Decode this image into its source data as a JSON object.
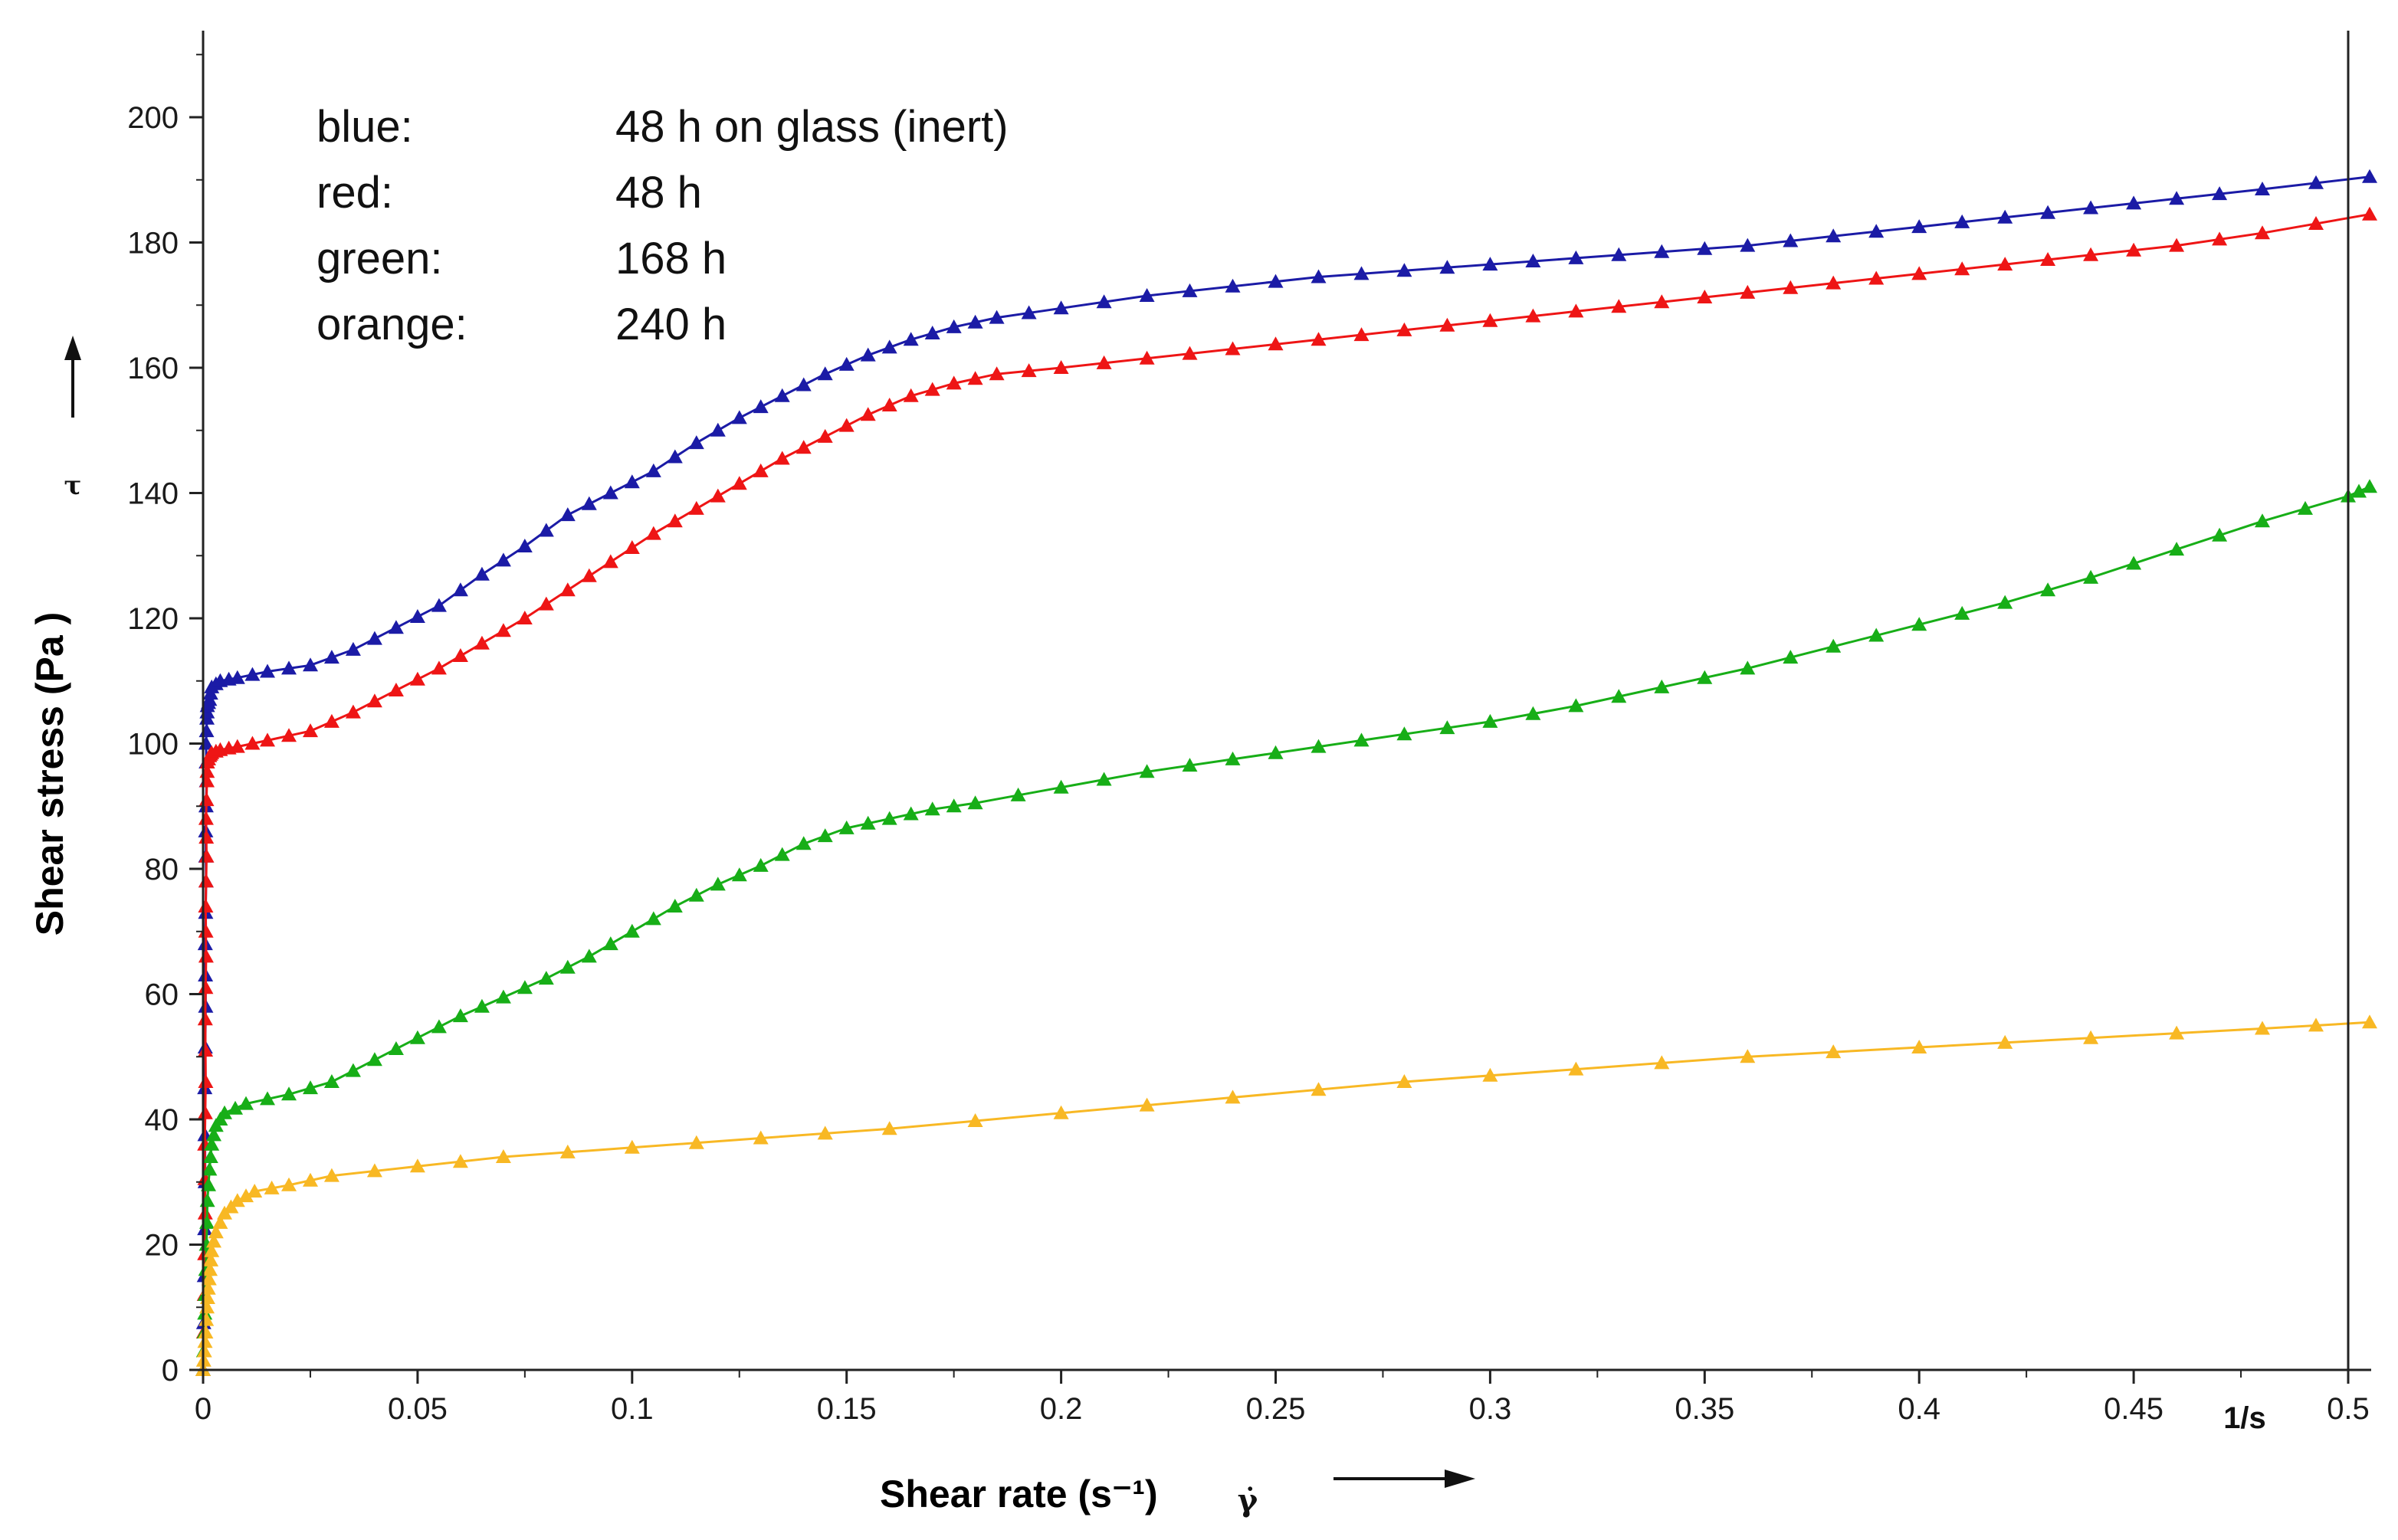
{
  "chart_data": {
    "type": "line",
    "title": "",
    "xlabel": "Shear rate (s⁻¹)",
    "x_symbol": "γ̇",
    "ylabel": "Shear stress (Pa )",
    "y_symbol": "τ",
    "x_unit": "1/s",
    "xlim": [
      0,
      0.505
    ],
    "ylim": [
      0,
      215
    ],
    "x_ticks": [
      {
        "value": 0,
        "label": "0"
      },
      {
        "value": 0.05,
        "label": "0.05"
      },
      {
        "value": 0.1,
        "label": "0.1"
      },
      {
        "value": 0.15,
        "label": "0.15"
      },
      {
        "value": 0.2,
        "label": "0.2"
      },
      {
        "value": 0.25,
        "label": "0.25"
      },
      {
        "value": 0.3,
        "label": "0.3"
      },
      {
        "value": 0.35,
        "label": "0.35"
      },
      {
        "value": 0.4,
        "label": "0.4"
      },
      {
        "value": 0.45,
        "label": "0.45"
      },
      {
        "value": 0.5,
        "label": "0.5"
      }
    ],
    "y_ticks": [
      {
        "value": 0,
        "label": "0"
      },
      {
        "value": 20,
        "label": "20"
      },
      {
        "value": 40,
        "label": "40"
      },
      {
        "value": 60,
        "label": "60"
      },
      {
        "value": 80,
        "label": "80"
      },
      {
        "value": 100,
        "label": "100"
      },
      {
        "value": 120,
        "label": "120"
      },
      {
        "value": 140,
        "label": "140"
      },
      {
        "value": 160,
        "label": "160"
      },
      {
        "value": 180,
        "label": "180"
      },
      {
        "value": 200,
        "label": "200"
      }
    ],
    "legend": [
      {
        "key": "blue:",
        "value": "48 h on glass (inert)"
      },
      {
        "key": "red:",
        "value": "48 h"
      },
      {
        "key": "green:",
        "value": "168 h"
      },
      {
        "key": "orange:",
        "value": "240 h"
      }
    ],
    "series": [
      {
        "name": "blue",
        "color": "#1b1ba6",
        "x": [
          0.0,
          0.0003,
          0.0005,
          0.0004,
          0.0006,
          0.0005,
          0.0007,
          0.0006,
          0.0008,
          0.0007,
          0.0009,
          0.001,
          0.0015,
          0.002,
          0.004,
          0.008,
          0.015,
          0.025,
          0.035,
          0.045,
          0.055,
          0.065,
          0.075,
          0.085,
          0.095,
          0.105,
          0.115,
          0.125,
          0.135,
          0.145,
          0.155,
          0.165,
          0.175,
          0.185,
          0.2,
          0.22,
          0.24,
          0.26,
          0.28,
          0.3,
          0.32,
          0.34,
          0.36,
          0.38,
          0.4,
          0.42,
          0.44,
          0.46,
          0.48,
          0.505
        ],
        "y": [
          0,
          15,
          30,
          45,
          58,
          68,
          78,
          86,
          94,
          100,
          104,
          106,
          107,
          109,
          110,
          110.5,
          111.5,
          112.5,
          115,
          118.5,
          122,
          127,
          131.5,
          136.5,
          140,
          143.5,
          148,
          152,
          155.5,
          159,
          162,
          164.5,
          166.5,
          168,
          169.5,
          171.5,
          173,
          174.5,
          175.5,
          176.5,
          177.5,
          178.5,
          179.5,
          181,
          182.5,
          184,
          185.5,
          187,
          188.5,
          190.5
        ]
      },
      {
        "name": "red",
        "color": "#ee1515",
        "x": [
          0.0,
          0.0003,
          0.0005,
          0.0004,
          0.0006,
          0.0005,
          0.0007,
          0.0006,
          0.0008,
          0.0007,
          0.0009,
          0.001,
          0.0015,
          0.002,
          0.004,
          0.008,
          0.015,
          0.025,
          0.035,
          0.045,
          0.055,
          0.065,
          0.075,
          0.085,
          0.095,
          0.105,
          0.115,
          0.125,
          0.135,
          0.145,
          0.155,
          0.165,
          0.175,
          0.185,
          0.2,
          0.22,
          0.24,
          0.26,
          0.28,
          0.3,
          0.32,
          0.34,
          0.36,
          0.38,
          0.4,
          0.42,
          0.44,
          0.46,
          0.48,
          0.505
        ],
        "y": [
          0,
          12,
          25,
          36,
          46,
          56,
          66,
          74,
          82,
          88,
          94,
          97,
          98,
          98.5,
          99,
          99.5,
          100.5,
          102,
          105,
          108.5,
          112,
          116,
          120,
          124.5,
          129,
          133.5,
          137.5,
          141.5,
          145.5,
          149,
          152.5,
          155.5,
          157.5,
          159,
          160,
          161.5,
          163,
          164.5,
          166,
          167.5,
          169,
          170.5,
          172,
          173.5,
          175,
          176.5,
          178,
          179.5,
          181.5,
          184.5
        ]
      },
      {
        "name": "green",
        "color": "#17ae17",
        "x": [
          0.0,
          0.0003,
          0.0005,
          0.0008,
          0.001,
          0.0015,
          0.002,
          0.003,
          0.005,
          0.01,
          0.02,
          0.03,
          0.04,
          0.05,
          0.06,
          0.07,
          0.08,
          0.09,
          0.1,
          0.11,
          0.12,
          0.13,
          0.14,
          0.15,
          0.16,
          0.17,
          0.18,
          0.2,
          0.22,
          0.24,
          0.26,
          0.28,
          0.3,
          0.32,
          0.34,
          0.36,
          0.38,
          0.4,
          0.42,
          0.44,
          0.46,
          0.48,
          0.5,
          0.505
        ],
        "y": [
          0,
          6,
          12,
          20,
          27,
          32,
          36,
          39,
          41,
          42.5,
          44,
          46,
          49.5,
          53,
          56.5,
          59.5,
          62.5,
          66,
          70,
          74,
          77.5,
          80.5,
          84,
          86.5,
          88,
          89.5,
          90.5,
          93,
          95.5,
          97.5,
          99.5,
          101.5,
          103.5,
          106,
          109,
          112,
          115.5,
          119,
          122.5,
          126.5,
          131,
          135.5,
          139.5,
          141
        ]
      },
      {
        "name": "orange",
        "color": "#f8b824",
        "x": [
          0.0,
          0.0003,
          0.0006,
          0.0009,
          0.0012,
          0.0016,
          0.002,
          0.003,
          0.005,
          0.008,
          0.012,
          0.02,
          0.03,
          0.05,
          0.07,
          0.1,
          0.13,
          0.16,
          0.2,
          0.24,
          0.28,
          0.32,
          0.36,
          0.4,
          0.44,
          0.48,
          0.505
        ],
        "y": [
          0,
          3,
          6,
          10,
          13,
          16,
          19,
          22,
          25,
          27,
          28.5,
          29.5,
          31,
          32.5,
          34,
          35.5,
          37,
          38.5,
          41,
          43.5,
          46,
          48,
          50,
          51.5,
          53,
          54.5,
          55.5
        ]
      }
    ]
  }
}
